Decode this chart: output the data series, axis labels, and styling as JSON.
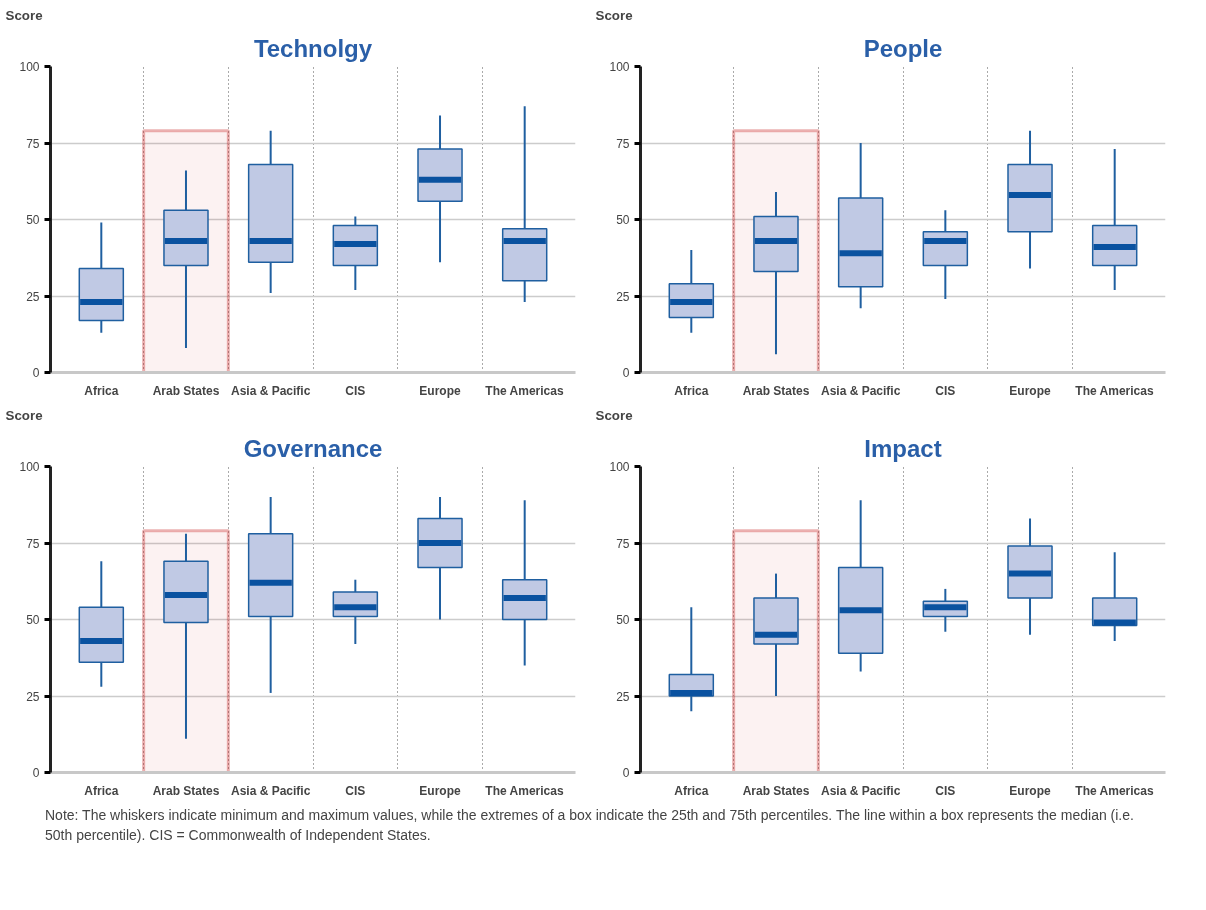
{
  "chart_data": [
    {
      "type": "box",
      "title": "Technolgy",
      "ylabel": "Score",
      "categories": [
        "Africa",
        "Arab States",
        "Asia & Pacific",
        "CIS",
        "Europe",
        "The Americas"
      ],
      "ylim": [
        0,
        100
      ],
      "yticks": [
        0,
        25,
        50,
        75,
        100
      ],
      "grid": true,
      "color": "#c0c9e4",
      "boxes": [
        {
          "low": 13,
          "q1": 17,
          "median": 23,
          "q3": 34,
          "high": 49
        },
        {
          "low": 8,
          "q1": 35,
          "median": 43,
          "q3": 53,
          "high": 66
        },
        {
          "low": 26,
          "q1": 36,
          "median": 43,
          "q3": 68,
          "high": 79
        },
        {
          "low": 27,
          "q1": 35,
          "median": 42,
          "q3": 48,
          "high": 51
        },
        {
          "low": 36,
          "q1": 56,
          "median": 63,
          "q3": 73,
          "high": 84
        },
        {
          "low": 23,
          "q1": 30,
          "median": 43,
          "q3": 47,
          "high": 87
        }
      ],
      "bands": [
        {
          "axis": "x",
          "from": "Arab States",
          "to": "Arab States",
          "color": "#c00000"
        }
      ]
    },
    {
      "type": "box",
      "title": "People",
      "ylabel": "Score",
      "categories": [
        "Africa",
        "Arab States",
        "Asia & Pacific",
        "CIS",
        "Europe",
        "The Americas"
      ],
      "ylim": [
        0,
        100
      ],
      "yticks": [
        0,
        25,
        50,
        75,
        100
      ],
      "grid": true,
      "color": "#c0c9e4",
      "boxes": [
        {
          "low": 13,
          "q1": 18,
          "median": 23,
          "q3": 29,
          "high": 40
        },
        {
          "low": 6,
          "q1": 33,
          "median": 43,
          "q3": 51,
          "high": 59
        },
        {
          "low": 21,
          "q1": 28,
          "median": 39,
          "q3": 57,
          "high": 75
        },
        {
          "low": 24,
          "q1": 35,
          "median": 43,
          "q3": 46,
          "high": 53
        },
        {
          "low": 34,
          "q1": 46,
          "median": 58,
          "q3": 68,
          "high": 79
        },
        {
          "low": 27,
          "q1": 35,
          "median": 41,
          "q3": 48,
          "high": 73
        }
      ],
      "bands": [
        {
          "axis": "x",
          "from": "Arab States",
          "to": "Arab States",
          "color": "#c00000"
        }
      ]
    },
    {
      "type": "box",
      "title": "Governance",
      "ylabel": "Score",
      "categories": [
        "Africa",
        "Arab States",
        "Asia & Pacific",
        "CIS",
        "Europe",
        "The Americas"
      ],
      "ylim": [
        0,
        100
      ],
      "yticks": [
        0,
        25,
        50,
        75,
        100
      ],
      "grid": true,
      "color": "#c0c9e4",
      "boxes": [
        {
          "low": 28,
          "q1": 36,
          "median": 43,
          "q3": 54,
          "high": 69
        },
        {
          "low": 11,
          "q1": 49,
          "median": 58,
          "q3": 69,
          "high": 78
        },
        {
          "low": 26,
          "q1": 51,
          "median": 62,
          "q3": 78,
          "high": 90
        },
        {
          "low": 42,
          "q1": 51,
          "median": 54,
          "q3": 59,
          "high": 63
        },
        {
          "low": 50,
          "q1": 67,
          "median": 75,
          "q3": 83,
          "high": 90
        },
        {
          "low": 35,
          "q1": 50,
          "median": 57,
          "q3": 63,
          "high": 89
        }
      ],
      "bands": [
        {
          "axis": "x",
          "from": "Arab States",
          "to": "Arab States",
          "color": "#c00000"
        }
      ]
    },
    {
      "type": "box",
      "title": "Impact",
      "ylabel": "Score",
      "categories": [
        "Africa",
        "Arab States",
        "Asia & Pacific",
        "CIS",
        "Europe",
        "The Americas"
      ],
      "ylim": [
        0,
        100
      ],
      "yticks": [
        0,
        25,
        50,
        75,
        100
      ],
      "grid": true,
      "color": "#c0c9e4",
      "boxes": [
        {
          "low": 20,
          "q1": 25,
          "median": 26,
          "q3": 32,
          "high": 54
        },
        {
          "low": 25,
          "q1": 42,
          "median": 45,
          "q3": 57,
          "high": 65
        },
        {
          "low": 33,
          "q1": 39,
          "median": 53,
          "q3": 67,
          "high": 89
        },
        {
          "low": 46,
          "q1": 51,
          "median": 54,
          "q3": 56,
          "high": 60
        },
        {
          "low": 45,
          "q1": 57,
          "median": 65,
          "q3": 74,
          "high": 83
        },
        {
          "low": 43,
          "q1": 48,
          "median": 49,
          "q3": 57,
          "high": 72
        }
      ],
      "bands": [
        {
          "axis": "x",
          "from": "Arab States",
          "to": "Arab States",
          "color": "#c00000"
        }
      ],
      "annotations": [
        "Note: The whiskers indicate minimum and maximum values, while the extremes of a box indicate the 25th and 75th percentiles. The line within a box represents the median (i.e. 50th percentile). CIS = Commonwealth of Independent States."
      ]
    }
  ]
}
